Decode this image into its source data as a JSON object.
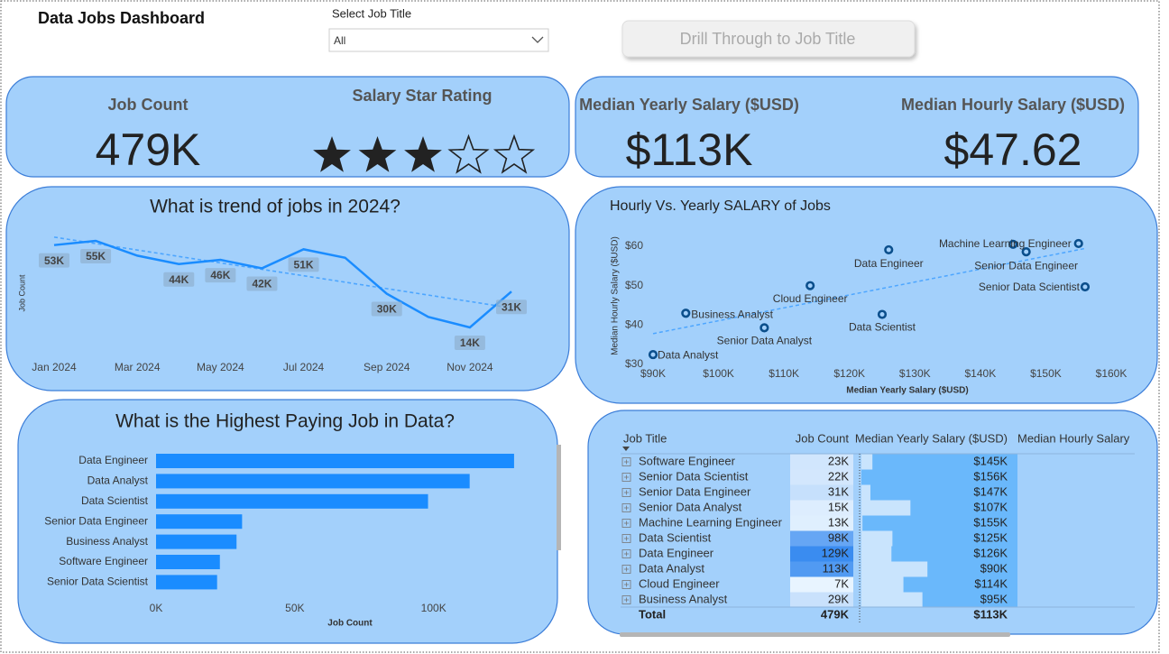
{
  "header": {
    "title": "Data Jobs Dashboard",
    "slicer_label": "Select Job Title",
    "slicer_value": "All",
    "button": "Drill Through to Job Title"
  },
  "cards": {
    "job_count": {
      "title": "Job Count",
      "value": "479K"
    },
    "salary_rating": {
      "title": "Salary Star Rating",
      "value": 3,
      "max": 5
    },
    "median_yearly": {
      "title": "Median Yearly Salary ($USD)",
      "value": "$113K"
    },
    "median_hourly": {
      "title": "Median Hourly Salary ($USD)",
      "value": "$47.62"
    }
  },
  "chart_data": [
    {
      "type": "line",
      "title": "What is trend of jobs in 2024?",
      "ylabel": "Job Count",
      "categories": [
        "Jan 2024",
        null,
        "Mar 2024",
        null,
        "May 2024",
        null,
        "Jul 2024",
        null,
        "Sep 2024",
        null,
        "Nov 2024",
        null
      ],
      "values": [
        53,
        55,
        48,
        44,
        46,
        42,
        51,
        47,
        30,
        19,
        14,
        31
      ],
      "value_labels": [
        "53K",
        "55K",
        null,
        "44K",
        "46K",
        "42K",
        "51K",
        null,
        "30K",
        null,
        "14K",
        "31K"
      ],
      "color": "#1a8cff",
      "trendline": true
    },
    {
      "type": "scatter",
      "title": "Hourly Vs. Yearly SALARY of Jobs",
      "xlabel": "Median Yearly Salary ($USD)",
      "ylabel": "Median Hourly Salary ($USD)",
      "x": [
        145,
        156,
        147,
        107,
        155,
        125,
        126,
        90,
        114,
        95
      ],
      "values": [
        60.5,
        49.7,
        58.6,
        39.3,
        60.7,
        42.7,
        59.1,
        32.5,
        50,
        43
      ],
      "labels": [
        null,
        "Senior Data Scientist",
        "Senior Data Engineer",
        "Senior Data Analyst",
        "Machine Learning Engineer",
        "Data Scientist",
        "Data Engineer",
        "Data Analyst",
        "Cloud Engineer",
        "Business Analyst"
      ],
      "xlim": [
        90,
        160
      ],
      "ylim": [
        30,
        60
      ],
      "xticks": [
        {
          "value": 90,
          "label": "$90K"
        },
        {
          "value": 100,
          "label": "$100K"
        },
        {
          "value": 110,
          "label": "$110K"
        },
        {
          "value": 120,
          "label": "$120K"
        },
        {
          "value": 130,
          "label": "$130K"
        },
        {
          "value": 140,
          "label": "$140K"
        },
        {
          "value": 150,
          "label": "$150K"
        },
        {
          "value": 160,
          "label": "$160K"
        }
      ],
      "yticks": [
        {
          "value": 30,
          "label": "$30"
        },
        {
          "value": 40,
          "label": "$40"
        },
        {
          "value": 50,
          "label": "$50"
        },
        {
          "value": 60,
          "label": "$60"
        }
      ],
      "color": "#0b4f8c",
      "trendline": true
    },
    {
      "type": "bar",
      "orientation": "horizontal",
      "title": "What is the Highest Paying Job in Data?",
      "xlabel": "Job Count",
      "categories": [
        "Data Engineer",
        "Data Analyst",
        "Data Scientist",
        "Senior Data Engineer",
        "Business Analyst",
        "Software Engineer",
        "Senior Data Scientist"
      ],
      "values": [
        129,
        113,
        98,
        31,
        29,
        23,
        22
      ],
      "xlim": [
        0,
        130
      ],
      "xticks": [
        {
          "value": 0,
          "label": "0K"
        },
        {
          "value": 50,
          "label": "50K"
        },
        {
          "value": 100,
          "label": "100K"
        }
      ],
      "color": "#1a8cff"
    }
  ],
  "table": {
    "columns": [
      "Job Title",
      "Job Count",
      "Median Yearly Salary ($USD)",
      "Median Hourly Salary"
    ],
    "rows": [
      {
        "title": "Software Engineer",
        "job_count": 23,
        "job_count_label": "23K",
        "salary": 145,
        "salary_label": "$145K"
      },
      {
        "title": "Senior Data Scientist",
        "job_count": 22,
        "job_count_label": "22K",
        "salary": 156,
        "salary_label": "$156K"
      },
      {
        "title": "Senior Data Engineer",
        "job_count": 31,
        "job_count_label": "31K",
        "salary": 147,
        "salary_label": "$147K"
      },
      {
        "title": "Senior Data Analyst",
        "job_count": 15,
        "job_count_label": "15K",
        "salary": 107,
        "salary_label": "$107K"
      },
      {
        "title": "Machine Learning Engineer",
        "job_count": 13,
        "job_count_label": "13K",
        "salary": 155,
        "salary_label": "$155K"
      },
      {
        "title": "Data Scientist",
        "job_count": 98,
        "job_count_label": "98K",
        "salary": 125,
        "salary_label": "$125K"
      },
      {
        "title": "Data Engineer",
        "job_count": 129,
        "job_count_label": "129K",
        "salary": 126,
        "salary_label": "$126K"
      },
      {
        "title": "Data Analyst",
        "job_count": 113,
        "job_count_label": "113K",
        "salary": 90,
        "salary_label": "$90K"
      },
      {
        "title": "Cloud Engineer",
        "job_count": 7,
        "job_count_label": "7K",
        "salary": 114,
        "salary_label": "$114K"
      },
      {
        "title": "Business Analyst",
        "job_count": 29,
        "job_count_label": "29K",
        "salary": 95,
        "salary_label": "$95K"
      }
    ],
    "total": {
      "title": "Total",
      "job_count": "479K",
      "salary": "$113K"
    }
  }
}
